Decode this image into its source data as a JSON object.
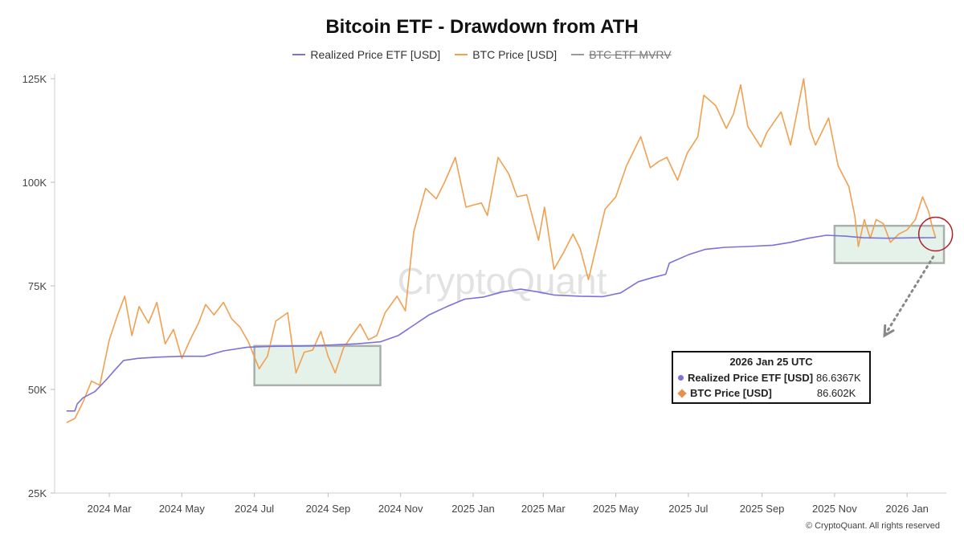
{
  "colors": {
    "realized": "#7b72d9",
    "btc": "#f0a050",
    "mvrv": "#999999",
    "highlight_fill": "#cfe8d8",
    "highlight_stroke": "#a9b0ab",
    "circle": "#b0202a",
    "arrow": "#888888"
  },
  "tooltip": {
    "date": "2026 Jan 25 UTC",
    "rows": [
      {
        "name": "Realized Price ETF [USD]",
        "value": "86.6367K"
      },
      {
        "name": "BTC Price [USD]",
        "value": "86.602K"
      }
    ]
  },
  "watermark": "CryptoQuant",
  "copyright": "© CryptoQuant. All rights reserved",
  "chart_data": {
    "type": "line",
    "title": "Bitcoin ETF - Drawdown from ATH",
    "legend": [
      {
        "name": "Realized Price ETF [USD]",
        "visible": true
      },
      {
        "name": "BTC Price [USD]",
        "visible": true
      },
      {
        "name": "BTC ETF MVRV",
        "visible": false
      }
    ],
    "legend_position": "top-center",
    "ylim": [
      25000,
      125000
    ],
    "y_ticks": [
      {
        "value": 25000,
        "label": "25K"
      },
      {
        "value": 50000,
        "label": "50K"
      },
      {
        "value": 75000,
        "label": "75K"
      },
      {
        "value": 100000,
        "label": "100K"
      },
      {
        "value": 125000,
        "label": "125K"
      }
    ],
    "x_ticks": [
      {
        "date": "2024-03-01",
        "label": "2024 Mar"
      },
      {
        "date": "2024-05-01",
        "label": "2024 May"
      },
      {
        "date": "2024-07-01",
        "label": "2024 Jul"
      },
      {
        "date": "2024-09-01",
        "label": "2024 Sep"
      },
      {
        "date": "2024-11-01",
        "label": "2024 Nov"
      },
      {
        "date": "2025-01-01",
        "label": "2025 Jan"
      },
      {
        "date": "2025-03-01",
        "label": "2025 Mar"
      },
      {
        "date": "2025-05-01",
        "label": "2025 May"
      },
      {
        "date": "2025-07-01",
        "label": "2025 Jul"
      },
      {
        "date": "2025-09-01",
        "label": "2025 Sep"
      },
      {
        "date": "2025-11-01",
        "label": "2025 Nov"
      },
      {
        "date": "2026-01-01",
        "label": "2026 Jan"
      }
    ],
    "xlim": [
      "2024-01-15",
      "2026-02-03"
    ],
    "grid": false,
    "series": [
      {
        "name": "BTC Price [USD]",
        "points": [
          [
            "2024-01-25",
            42000
          ],
          [
            "2024-02-01",
            43000
          ],
          [
            "2024-02-08",
            47000
          ],
          [
            "2024-02-15",
            52000
          ],
          [
            "2024-02-22",
            51000
          ],
          [
            "2024-03-01",
            62000
          ],
          [
            "2024-03-08",
            68000
          ],
          [
            "2024-03-14",
            72500
          ],
          [
            "2024-03-20",
            63000
          ],
          [
            "2024-03-26",
            70000
          ],
          [
            "2024-04-03",
            66000
          ],
          [
            "2024-04-10",
            71000
          ],
          [
            "2024-04-17",
            61000
          ],
          [
            "2024-04-24",
            64500
          ],
          [
            "2024-05-01",
            57500
          ],
          [
            "2024-05-08",
            62000
          ],
          [
            "2024-05-15",
            66000
          ],
          [
            "2024-05-21",
            70500
          ],
          [
            "2024-05-28",
            68000
          ],
          [
            "2024-06-05",
            71000
          ],
          [
            "2024-06-12",
            67000
          ],
          [
            "2024-06-19",
            65000
          ],
          [
            "2024-06-26",
            61500
          ],
          [
            "2024-07-05",
            55000
          ],
          [
            "2024-07-12",
            58000
          ],
          [
            "2024-07-19",
            66500
          ],
          [
            "2024-07-29",
            68500
          ],
          [
            "2024-08-05",
            54000
          ],
          [
            "2024-08-12",
            59000
          ],
          [
            "2024-08-19",
            59500
          ],
          [
            "2024-08-26",
            64000
          ],
          [
            "2024-09-01",
            58000
          ],
          [
            "2024-09-07",
            54000
          ],
          [
            "2024-09-14",
            60000
          ],
          [
            "2024-09-21",
            63000
          ],
          [
            "2024-09-28",
            65800
          ],
          [
            "2024-10-05",
            62000
          ],
          [
            "2024-10-12",
            63000
          ],
          [
            "2024-10-19",
            68500
          ],
          [
            "2024-10-29",
            72500
          ],
          [
            "2024-11-05",
            69000
          ],
          [
            "2024-11-12",
            88000
          ],
          [
            "2024-11-22",
            98500
          ],
          [
            "2024-12-01",
            96000
          ],
          [
            "2024-12-08",
            100000
          ],
          [
            "2024-12-17",
            106000
          ],
          [
            "2024-12-26",
            94000
          ],
          [
            "2025-01-01",
            94500
          ],
          [
            "2025-01-08",
            95000
          ],
          [
            "2025-01-13",
            92000
          ],
          [
            "2025-01-22",
            106000
          ],
          [
            "2025-01-31",
            102000
          ],
          [
            "2025-02-07",
            96500
          ],
          [
            "2025-02-15",
            97000
          ],
          [
            "2025-02-25",
            86000
          ],
          [
            "2025-03-02",
            94000
          ],
          [
            "2025-03-10",
            79000
          ],
          [
            "2025-03-18",
            83000
          ],
          [
            "2025-03-26",
            87500
          ],
          [
            "2025-04-01",
            84000
          ],
          [
            "2025-04-08",
            76500
          ],
          [
            "2025-04-15",
            85000
          ],
          [
            "2025-04-22",
            93500
          ],
          [
            "2025-05-01",
            96500
          ],
          [
            "2025-05-10",
            104000
          ],
          [
            "2025-05-22",
            111000
          ],
          [
            "2025-05-30",
            103500
          ],
          [
            "2025-06-06",
            105000
          ],
          [
            "2025-06-13",
            106000
          ],
          [
            "2025-06-22",
            100500
          ],
          [
            "2025-06-30",
            107000
          ],
          [
            "2025-07-09",
            111000
          ],
          [
            "2025-07-14",
            121000
          ],
          [
            "2025-07-24",
            118500
          ],
          [
            "2025-08-02",
            113000
          ],
          [
            "2025-08-08",
            116500
          ],
          [
            "2025-08-14",
            123500
          ],
          [
            "2025-08-20",
            113500
          ],
          [
            "2025-08-31",
            108500
          ],
          [
            "2025-09-05",
            112000
          ],
          [
            "2025-09-17",
            117000
          ],
          [
            "2025-09-25",
            109000
          ],
          [
            "2025-10-06",
            125000
          ],
          [
            "2025-10-11",
            113000
          ],
          [
            "2025-10-16",
            109000
          ],
          [
            "2025-10-27",
            115500
          ],
          [
            "2025-11-04",
            104000
          ],
          [
            "2025-11-13",
            99000
          ],
          [
            "2025-11-18",
            92000
          ],
          [
            "2025-11-21",
            84500
          ],
          [
            "2025-11-26",
            91000
          ],
          [
            "2025-12-01",
            86500
          ],
          [
            "2025-12-06",
            91000
          ],
          [
            "2025-12-12",
            90000
          ],
          [
            "2025-12-18",
            85500
          ],
          [
            "2025-12-25",
            87500
          ],
          [
            "2026-01-01",
            88500
          ],
          [
            "2026-01-08",
            91000
          ],
          [
            "2026-01-14",
            96500
          ],
          [
            "2026-01-19",
            93000
          ],
          [
            "2026-01-22",
            89500
          ],
          [
            "2026-01-25",
            86602
          ]
        ]
      },
      {
        "name": "Realized Price ETF [USD]",
        "points": [
          [
            "2024-01-25",
            44800
          ],
          [
            "2024-02-01",
            44800
          ],
          [
            "2024-02-03",
            46500
          ],
          [
            "2024-02-08",
            48000
          ],
          [
            "2024-02-18",
            49500
          ],
          [
            "2024-02-28",
            52500
          ],
          [
            "2024-03-05",
            54500
          ],
          [
            "2024-03-13",
            57000
          ],
          [
            "2024-03-25",
            57500
          ],
          [
            "2024-04-10",
            57800
          ],
          [
            "2024-05-01",
            58000
          ],
          [
            "2024-05-20",
            58000
          ],
          [
            "2024-06-05",
            59300
          ],
          [
            "2024-06-25",
            60200
          ],
          [
            "2024-07-15",
            60400
          ],
          [
            "2024-08-10",
            60500
          ],
          [
            "2024-09-01",
            60700
          ],
          [
            "2024-09-25",
            61000
          ],
          [
            "2024-10-15",
            61500
          ],
          [
            "2024-10-30",
            63000
          ],
          [
            "2024-11-12",
            65500
          ],
          [
            "2024-11-25",
            68000
          ],
          [
            "2024-12-10",
            70000
          ],
          [
            "2024-12-25",
            71800
          ],
          [
            "2025-01-10",
            72300
          ],
          [
            "2025-01-25",
            73500
          ],
          [
            "2025-02-10",
            74200
          ],
          [
            "2025-02-25",
            73500
          ],
          [
            "2025-03-10",
            72800
          ],
          [
            "2025-04-01",
            72500
          ],
          [
            "2025-04-20",
            72400
          ],
          [
            "2025-05-05",
            73300
          ],
          [
            "2025-05-20",
            76000
          ],
          [
            "2025-06-01",
            77000
          ],
          [
            "2025-06-12",
            77800
          ],
          [
            "2025-06-15",
            80500
          ],
          [
            "2025-07-01",
            82500
          ],
          [
            "2025-07-15",
            83800
          ],
          [
            "2025-08-01",
            84300
          ],
          [
            "2025-08-20",
            84500
          ],
          [
            "2025-09-10",
            84800
          ],
          [
            "2025-09-25",
            85500
          ],
          [
            "2025-10-10",
            86500
          ],
          [
            "2025-10-25",
            87200
          ],
          [
            "2025-11-10",
            87000
          ],
          [
            "2025-11-25",
            86600
          ],
          [
            "2025-12-15",
            86500
          ],
          [
            "2026-01-10",
            86600
          ],
          [
            "2026-01-25",
            86637
          ]
        ]
      }
    ],
    "highlights": [
      {
        "x0": "2024-07-01",
        "x1": "2024-10-15",
        "y0": 51000,
        "y1": 60500
      },
      {
        "x0": "2025-11-01",
        "x1": "2026-02-01",
        "y0": 80500,
        "y1": 89500
      }
    ],
    "annotations": [
      {
        "type": "circle",
        "x": "2026-01-25",
        "y": 87500
      },
      {
        "type": "dotted-arrow",
        "from": [
          "2026-01-23",
          82000
        ],
        "to": [
          "2025-12-13",
          63000
        ]
      }
    ]
  }
}
